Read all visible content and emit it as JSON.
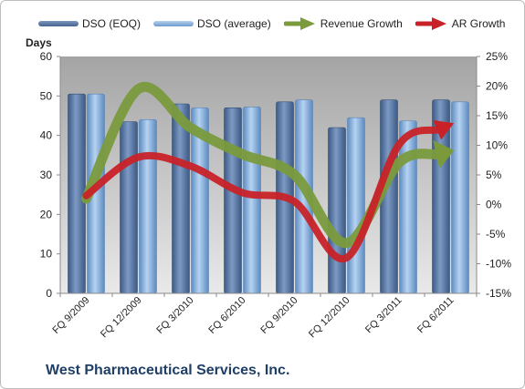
{
  "chart_data": {
    "type": "bar",
    "categories": [
      "FQ 9/2009",
      "FQ 12/2009",
      "FQ 3/2010",
      "FQ 6/2010",
      "FQ 9/2010",
      "FQ 12/2010",
      "FQ 3/2011",
      "FQ 6/2011"
    ],
    "series": [
      {
        "name": "DSO (EOQ)",
        "type": "bar",
        "axis": "left",
        "values": [
          50.5,
          43.5,
          48,
          47,
          48.5,
          42,
          49,
          49
        ],
        "color": "#4f6f9e"
      },
      {
        "name": "DSO (average)",
        "type": "bar",
        "axis": "left",
        "values": [
          50.5,
          44,
          47,
          47.2,
          49,
          44.5,
          43.7,
          48.5
        ],
        "color": "#7ea8d6"
      },
      {
        "name": "Revenue Growth",
        "type": "line",
        "axis": "right",
        "values": [
          0.01,
          0.195,
          0.13,
          0.085,
          0.05,
          -0.065,
          0.07,
          0.09
        ],
        "color": "#7a9a3c"
      },
      {
        "name": "AR Growth",
        "type": "line",
        "axis": "right",
        "values": [
          0.015,
          0.08,
          0.065,
          0.02,
          0.005,
          -0.09,
          0.1,
          0.135
        ],
        "color": "#c82228"
      }
    ],
    "ylabel": "Days",
    "ylim": [
      0,
      60
    ],
    "yticks": [
      "0",
      "10",
      "20",
      "30",
      "40",
      "50",
      "60"
    ],
    "y2lim": [
      -0.15,
      0.25
    ],
    "y2ticks": [
      "-15%",
      "-10%",
      "-5%",
      "0%",
      "5%",
      "10%",
      "15%",
      "20%",
      "25%"
    ],
    "grid": false,
    "legend_position": "top"
  },
  "company": "West Pharmaceutical Services, Inc."
}
